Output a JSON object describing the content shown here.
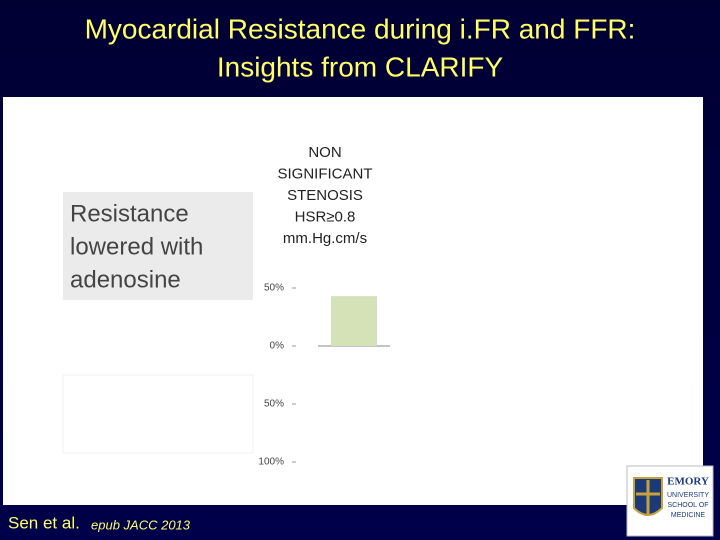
{
  "slide": {
    "title": [
      "Myocardial Resistance during i.FR and FFR:",
      "Insights from CLARIFY"
    ],
    "callout": [
      "Resistance",
      "lowered with",
      "adenosine"
    ],
    "footer": {
      "authors": "Sen et al.",
      "source": "epub JACC 2013"
    },
    "logo": [
      "EMORY",
      "UNIVERSITY",
      "SCHOOL OF",
      "MEDICINE"
    ]
  },
  "chart_data": {
    "type": "bar",
    "annotation": [
      "NON",
      "SIGNIFICANT",
      "STENOSIS",
      "HSR≥0.8",
      "mm.Hg.cm/s"
    ],
    "categories": [
      null
    ],
    "values": [
      43
    ],
    "color": "#d5e2b8",
    "ylim": [
      -100,
      50
    ],
    "yticks": [
      {
        "value": 50,
        "label": "50%"
      },
      {
        "value": 0,
        "label": "0%"
      },
      {
        "value": -50,
        "label": "50%"
      },
      {
        "value": -100,
        "label": "100%"
      }
    ]
  }
}
